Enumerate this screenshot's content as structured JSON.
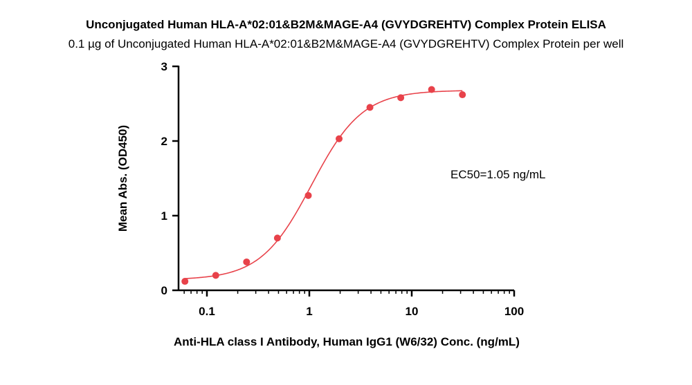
{
  "chart_data": {
    "type": "scatter",
    "title": "Unconjugated Human HLA-A*02:01&B2M&MAGE-A4 (GVYDGREHTV) Complex Protein ELISA",
    "subtitle": "0.1 µg of Unconjugated Human HLA-A*02:01&B2M&MAGE-A4 (GVYDGREHTV) Complex Protein per well",
    "xlabel": "Anti-HLA class I Antibody, Human IgG1 (W6/32) Conc. (ng/mL)",
    "ylabel": "Mean Abs. (OD450)",
    "x_scale": "log",
    "xlim": [
      0.05,
      100
    ],
    "ylim": [
      0,
      3
    ],
    "x_ticks": [
      0.1,
      1,
      10,
      100
    ],
    "x_tick_labels": [
      "0.1",
      "1",
      "10",
      "100"
    ],
    "y_ticks": [
      0,
      1,
      2,
      3
    ],
    "y_tick_labels": [
      "0",
      "1",
      "2",
      "3"
    ],
    "grid": false,
    "annotation": "EC50=1.05 ng/mL",
    "series": [
      {
        "x": [
          0.061,
          0.122,
          0.244,
          0.488,
          0.977,
          1.953,
          3.906,
          7.813,
          15.625,
          31.25
        ],
        "y": [
          0.12,
          0.2,
          0.38,
          0.7,
          1.27,
          2.03,
          2.45,
          2.58,
          2.69,
          2.62
        ],
        "color": "#e8424a",
        "fit": {
          "model": "4PL",
          "bottom": 0.14,
          "top": 2.68,
          "ec50": 1.05,
          "hill": 1.75
        }
      }
    ]
  }
}
